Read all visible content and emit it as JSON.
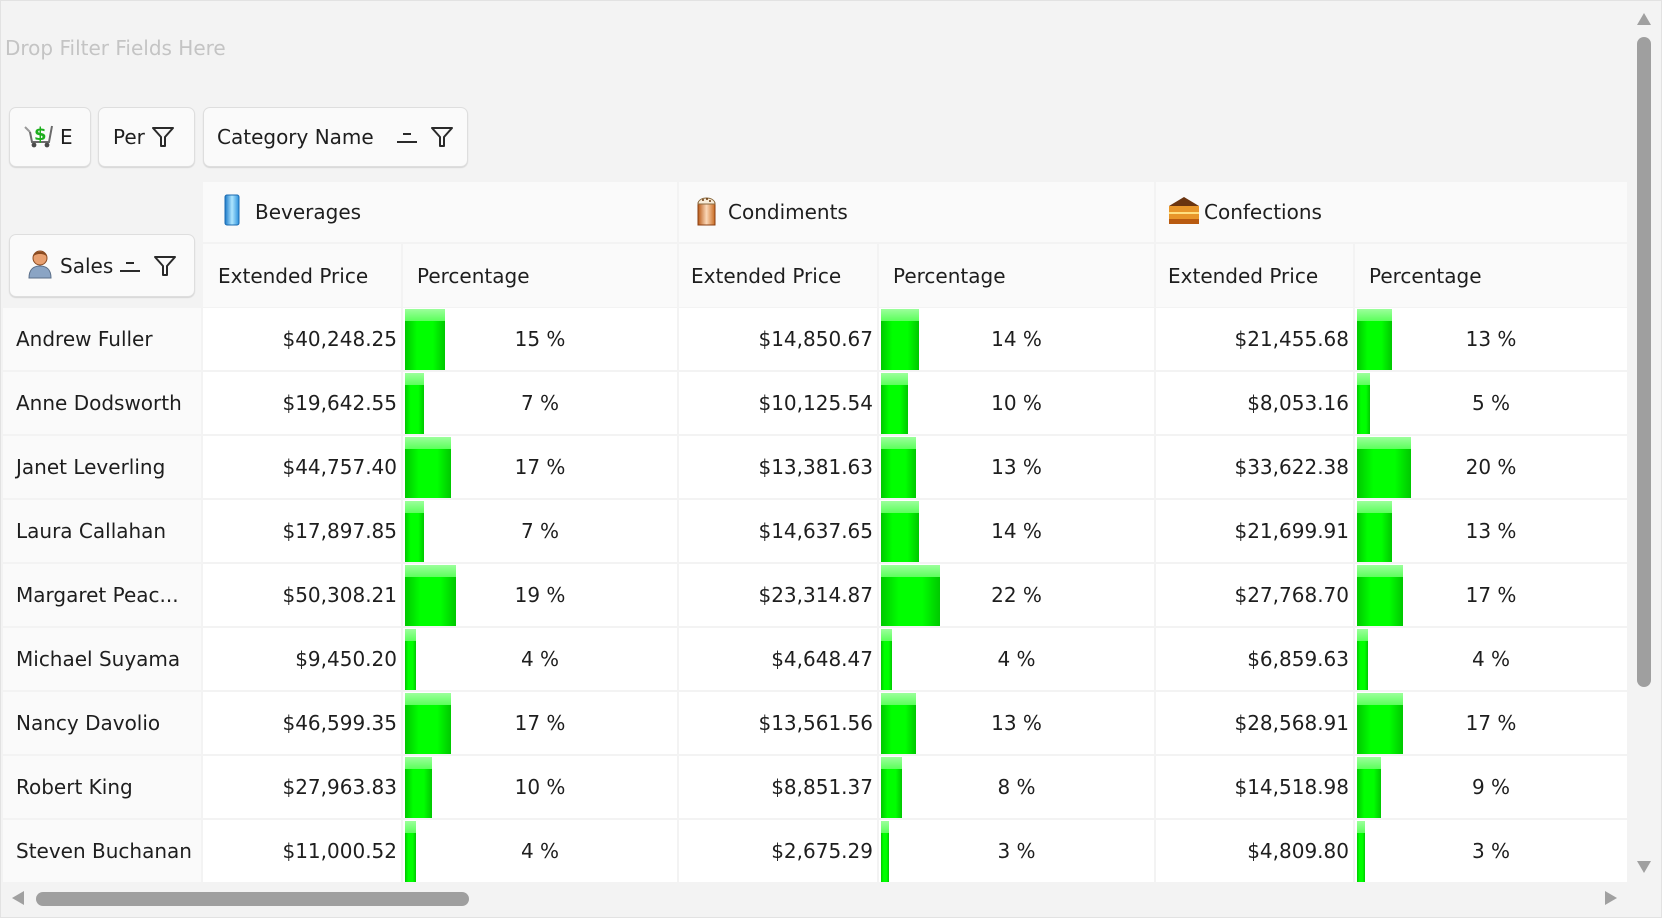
{
  "filter_area": {
    "placeholder": "Drop Filter Fields Here"
  },
  "data_fields": [
    {
      "label": "E",
      "icon": "shopping-cart-dollar-icon"
    },
    {
      "label": "Per",
      "icon": "filter-icon"
    }
  ],
  "column_field": {
    "label": "Category Name",
    "icons": [
      "sort-icon",
      "filter-icon"
    ]
  },
  "row_field": {
    "label": "Sales",
    "icons": [
      "person-icon",
      "sort-icon",
      "filter-icon"
    ]
  },
  "categories": [
    {
      "name": "Beverages",
      "icon": "glass-icon"
    },
    {
      "name": "Condiments",
      "icon": "salt-shaker-icon"
    },
    {
      "name": "Confections",
      "icon": "cake-icon"
    }
  ],
  "measures": [
    "Extended Price",
    "Percentage"
  ],
  "colors": {
    "bar": "#00ff00",
    "bar_highlight": "#80ff80",
    "grid_line": "#e5e5e5",
    "header_bg": "#fafafa"
  },
  "rows": [
    {
      "name": "Andrew Fuller",
      "cells": [
        {
          "price": "$40,248.25",
          "pct": 15
        },
        {
          "price": "$14,850.67",
          "pct": 14
        },
        {
          "price": "$21,455.68",
          "pct": 13
        }
      ]
    },
    {
      "name": "Anne Dodsworth",
      "cells": [
        {
          "price": "$19,642.55",
          "pct": 7
        },
        {
          "price": "$10,125.54",
          "pct": 10
        },
        {
          "price": "$8,053.16",
          "pct": 5
        }
      ]
    },
    {
      "name": "Janet Leverling",
      "cells": [
        {
          "price": "$44,757.40",
          "pct": 17
        },
        {
          "price": "$13,381.63",
          "pct": 13
        },
        {
          "price": "$33,622.38",
          "pct": 20
        }
      ]
    },
    {
      "name": "Laura Callahan",
      "cells": [
        {
          "price": "$17,897.85",
          "pct": 7
        },
        {
          "price": "$14,637.65",
          "pct": 14
        },
        {
          "price": "$21,699.91",
          "pct": 13
        }
      ]
    },
    {
      "name": "Margaret Peac...",
      "cells": [
        {
          "price": "$50,308.21",
          "pct": 19
        },
        {
          "price": "$23,314.87",
          "pct": 22
        },
        {
          "price": "$27,768.70",
          "pct": 17
        }
      ]
    },
    {
      "name": "Michael Suyama",
      "cells": [
        {
          "price": "$9,450.20",
          "pct": 4
        },
        {
          "price": "$4,648.47",
          "pct": 4
        },
        {
          "price": "$6,859.63",
          "pct": 4
        }
      ]
    },
    {
      "name": "Nancy Davolio",
      "cells": [
        {
          "price": "$46,599.35",
          "pct": 17
        },
        {
          "price": "$13,561.56",
          "pct": 13
        },
        {
          "price": "$28,568.91",
          "pct": 17
        }
      ]
    },
    {
      "name": "Robert King",
      "cells": [
        {
          "price": "$27,963.83",
          "pct": 10
        },
        {
          "price": "$8,851.37",
          "pct": 8
        },
        {
          "price": "$14,518.98",
          "pct": 9
        }
      ]
    },
    {
      "name": "Steven Buchanan",
      "cells": [
        {
          "price": "$11,000.52",
          "pct": 4
        },
        {
          "price": "$2,675.29",
          "pct": 3
        },
        {
          "price": "$4,809.80",
          "pct": 3
        }
      ]
    }
  ],
  "pct_suffix": " %"
}
